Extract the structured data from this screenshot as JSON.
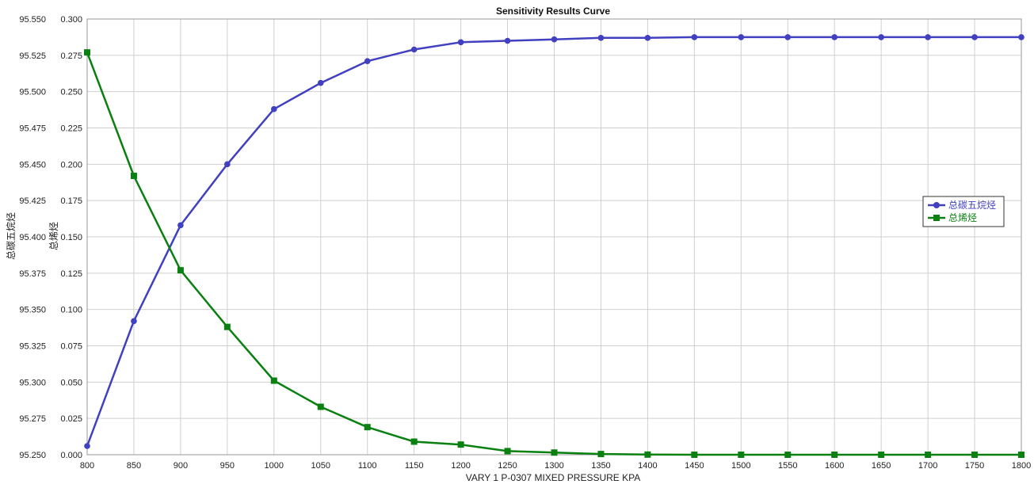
{
  "chart_data": {
    "type": "line",
    "title": "Sensitivity Results Curve",
    "xlabel": "VARY   1 P-0307 MIXED PRESSURE KPA",
    "x": [
      800,
      850,
      900,
      950,
      1000,
      1050,
      1100,
      1150,
      1200,
      1250,
      1300,
      1350,
      1400,
      1450,
      1500,
      1550,
      1600,
      1650,
      1700,
      1750,
      1800
    ],
    "xlim": [
      800,
      1800
    ],
    "y1": {
      "label": "总碳五烷烃",
      "lim": [
        95.25,
        95.55
      ],
      "ticks": [
        "95.250",
        "95.275",
        "95.300",
        "95.325",
        "95.350",
        "95.375",
        "95.400",
        "95.425",
        "95.450",
        "95.475",
        "95.500",
        "95.525",
        "95.550"
      ]
    },
    "y2": {
      "label": "总烯烃",
      "lim": [
        0,
        0.3
      ],
      "ticks": [
        "0.000",
        "0.025",
        "0.050",
        "0.075",
        "0.100",
        "0.125",
        "0.150",
        "0.175",
        "0.200",
        "0.225",
        "0.250",
        "0.275",
        "0.300"
      ]
    },
    "grid": true,
    "legend_position": "right",
    "series": [
      {
        "name": "总碳五烷烃",
        "axis": "y1",
        "color": "#4040c0",
        "marker": "circle",
        "values": [
          95.256,
          95.342,
          95.408,
          95.45,
          95.488,
          95.506,
          95.521,
          95.529,
          95.534,
          95.535,
          95.536,
          95.537,
          95.537,
          95.5375,
          95.5375,
          95.5375,
          95.5375,
          95.5375,
          95.5375,
          95.5375,
          95.5375
        ]
      },
      {
        "name": "总烯烃",
        "axis": "y2",
        "color": "#0a8010",
        "marker": "square",
        "values": [
          0.277,
          0.192,
          0.127,
          0.088,
          0.051,
          0.033,
          0.019,
          0.009,
          0.007,
          0.0025,
          0.0015,
          0.0005,
          0.0001,
          0.0,
          0.0,
          0.0,
          0.0,
          0.0,
          0.0,
          0.0,
          0.0
        ]
      }
    ]
  }
}
